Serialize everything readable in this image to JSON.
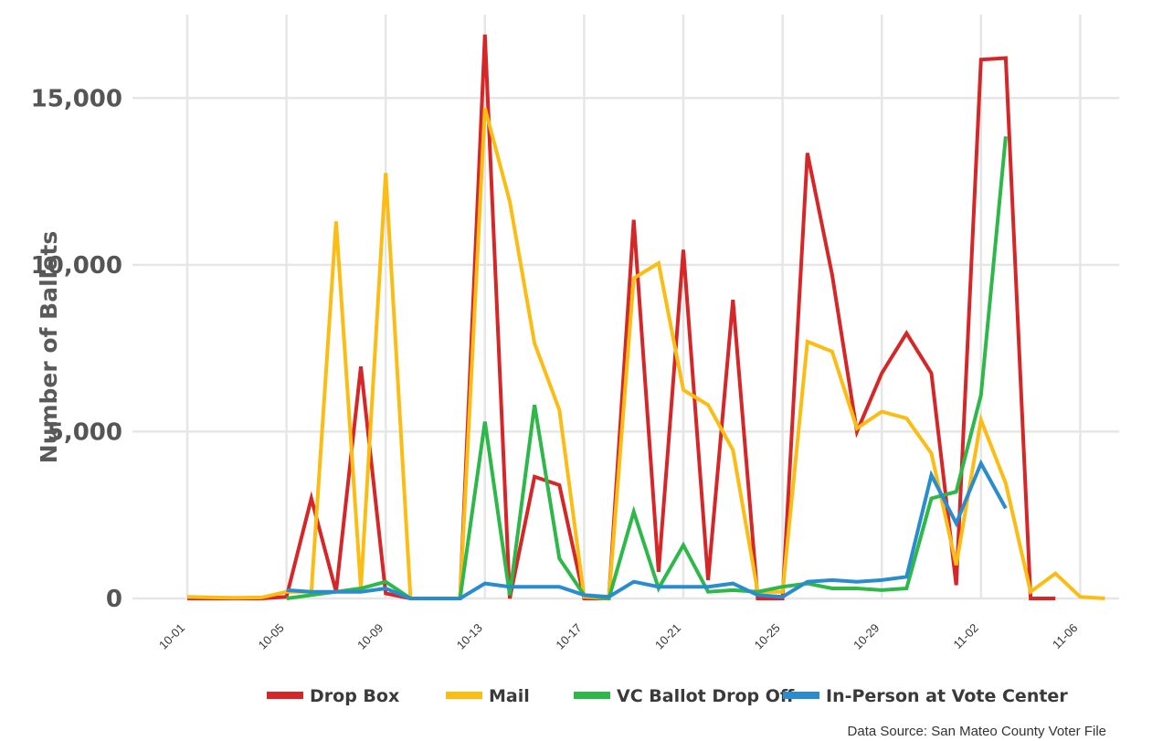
{
  "chart_data": {
    "type": "line",
    "title": "",
    "xlabel": "",
    "ylabel": "Number of Ballots",
    "ylim": [
      0,
      17500
    ],
    "yticks": [
      0,
      5000,
      10000,
      15000
    ],
    "ytick_labels": [
      "0",
      "5,000",
      "10,000",
      "15,000"
    ],
    "xtick_labels": [
      "10-01",
      "10-05",
      "10-09",
      "10-13",
      "10-17",
      "10-21",
      "10-25",
      "10-29",
      "11-02",
      "11-06"
    ],
    "xtick_positions": [
      1,
      5,
      9,
      13,
      17,
      21,
      25,
      29,
      33,
      37
    ],
    "x_day_labels": [
      "10-01",
      "10-02",
      "10-03",
      "10-04",
      "10-05",
      "10-06",
      "10-07",
      "10-08",
      "10-09",
      "10-10",
      "10-11",
      "10-12",
      "10-13",
      "10-14",
      "10-15",
      "10-16",
      "10-17",
      "10-18",
      "10-19",
      "10-20",
      "10-21",
      "10-22",
      "10-23",
      "10-24",
      "10-25",
      "10-26",
      "10-27",
      "10-28",
      "10-29",
      "10-30",
      "10-31",
      "11-01",
      "11-02",
      "11-03",
      "11-04",
      "11-05",
      "11-06",
      "11-07"
    ],
    "grid": true,
    "legend_position": "bottom",
    "series": [
      {
        "name": "Drop Box",
        "color": "#d62728",
        "values": [
          0,
          0,
          0,
          0,
          50,
          3000,
          200,
          6950,
          150,
          0,
          0,
          0,
          16900,
          0,
          3650,
          3400,
          0,
          0,
          11350,
          800,
          10450,
          550,
          8950,
          0,
          0,
          13350,
          9700,
          5000,
          6750,
          7950,
          6750,
          400,
          16150,
          16200,
          0,
          0,
          null,
          null
        ]
      },
      {
        "name": "Mail",
        "color": "#fbbc14",
        "values": [
          50,
          30,
          20,
          30,
          200,
          200,
          11300,
          300,
          12750,
          0,
          0,
          0,
          14700,
          11900,
          7650,
          5650,
          50,
          0,
          9600,
          10050,
          6250,
          5800,
          4450,
          200,
          200,
          7700,
          7400,
          5100,
          5600,
          5400,
          4350,
          1000,
          5350,
          3450,
          200,
          750,
          50,
          0
        ]
      },
      {
        "name": "VC Ballot Drop Off",
        "color": "#2eb84a",
        "values": [
          null,
          null,
          null,
          null,
          0,
          100,
          200,
          300,
          500,
          0,
          0,
          0,
          5300,
          100,
          5800,
          1200,
          100,
          0,
          2600,
          300,
          1600,
          200,
          250,
          200,
          350,
          450,
          300,
          300,
          250,
          300,
          3000,
          3200,
          6100,
          13850,
          null,
          null,
          null,
          null
        ]
      },
      {
        "name": "In-Person at Vote Center",
        "color": "#2a8ccf",
        "values": [
          null,
          null,
          null,
          null,
          250,
          200,
          200,
          200,
          300,
          0,
          0,
          0,
          450,
          350,
          350,
          350,
          100,
          50,
          500,
          350,
          350,
          350,
          450,
          100,
          50,
          500,
          550,
          500,
          550,
          650,
          3700,
          2250,
          4050,
          2700,
          null,
          null,
          null,
          null
        ]
      }
    ]
  },
  "source_note": "Data Source: San Mateo County Voter File"
}
